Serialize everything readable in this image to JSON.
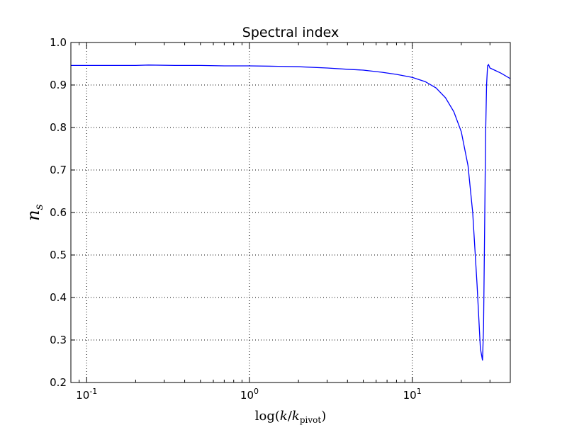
{
  "chart_data": {
    "type": "line",
    "title": "Spectral index",
    "xlabel": "log(k/k_pivot)",
    "xlabel_parts": {
      "prefix": "log(",
      "k1": "k",
      "slash": "/",
      "k2": "k",
      "sub": "pivot",
      "suffix": ")"
    },
    "ylabel": "n_s",
    "ylabel_parts": {
      "base": "n",
      "sub": "s"
    },
    "x_scale": "log",
    "xlim": [
      0.08,
      40
    ],
    "ylim": [
      0.2,
      1.0
    ],
    "grid": true,
    "line_color": "#0000ff",
    "x_ticks": [
      {
        "value": 0.1,
        "base": "10",
        "exp": "-1"
      },
      {
        "value": 1,
        "base": "10",
        "exp": "0"
      },
      {
        "value": 10,
        "base": "10",
        "exp": "1"
      }
    ],
    "y_ticks": [
      {
        "value": 0.2,
        "label": "0.2"
      },
      {
        "value": 0.3,
        "label": "0.3"
      },
      {
        "value": 0.4,
        "label": "0.4"
      },
      {
        "value": 0.5,
        "label": "0.5"
      },
      {
        "value": 0.6,
        "label": "0.6"
      },
      {
        "value": 0.7,
        "label": "0.7"
      },
      {
        "value": 0.8,
        "label": "0.8"
      },
      {
        "value": 0.9,
        "label": "0.9"
      },
      {
        "value": 1.0,
        "label": "1.0"
      }
    ],
    "series": [
      {
        "x": [
          0.08,
          0.12,
          0.2,
          0.24,
          0.35,
          0.5,
          0.7,
          1.0,
          1.5,
          2.0,
          3.0,
          4.0,
          5.0,
          6.5,
          8.0,
          10.0,
          12.0,
          14.0,
          16.0,
          18.0,
          20.0,
          22.0,
          23.5,
          25.0,
          26.2,
          27.0,
          27.4,
          27.8,
          28.2,
          28.6,
          29.0,
          29.4,
          30.0,
          32.0,
          35.0,
          40.0
        ],
        "y": [
          0.946,
          0.946,
          0.946,
          0.947,
          0.946,
          0.946,
          0.945,
          0.945,
          0.944,
          0.943,
          0.94,
          0.937,
          0.935,
          0.93,
          0.925,
          0.918,
          0.908,
          0.893,
          0.87,
          0.837,
          0.79,
          0.71,
          0.6,
          0.43,
          0.28,
          0.252,
          0.33,
          0.55,
          0.78,
          0.9,
          0.945,
          0.948,
          0.94,
          0.935,
          0.928,
          0.915
        ]
      }
    ]
  }
}
